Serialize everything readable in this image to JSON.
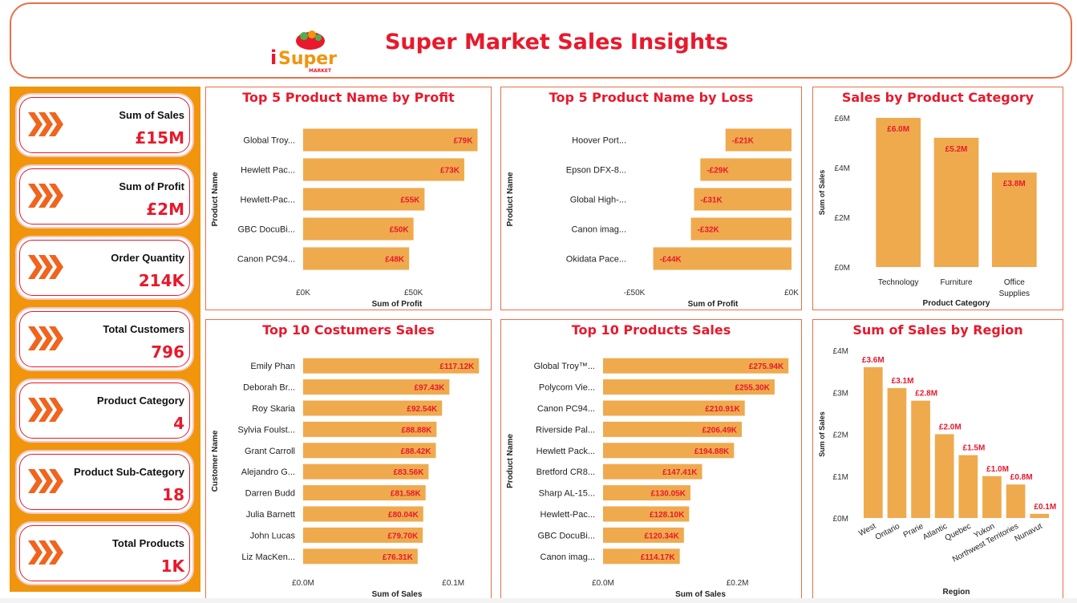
{
  "header": {
    "title": "Super Market Sales Insights",
    "logo_text": "Super",
    "logo_subtext": "MARKET",
    "logo_i": "i"
  },
  "kpis": [
    {
      "label": "Sum of Sales",
      "value": "£15M"
    },
    {
      "label": "Sum of Profit",
      "value": "£2M"
    },
    {
      "label": "Order Quantity",
      "value": "214K"
    },
    {
      "label": "Total Customers",
      "value": "796"
    },
    {
      "label": "Product Category",
      "value": "4"
    },
    {
      "label": "Product Sub-Category",
      "value": "18"
    },
    {
      "label": "Total Products",
      "value": "1K"
    }
  ],
  "colors": {
    "bar": "#efaa4e",
    "accent": "#e8192c",
    "border": "#e8704a",
    "sidebar": "#f0950c"
  },
  "chart_data": [
    {
      "id": "profit",
      "type": "bar",
      "orientation": "horizontal",
      "title": "Top 5 Product Name by Profit",
      "xlabel": "Sum of Profit",
      "ylabel": "Product Name",
      "categories": [
        "Global Troy...",
        "Hewlett Pac...",
        "Hewlett-Pac...",
        "GBC DocuBi...",
        "Canon PC94..."
      ],
      "values": [
        79,
        73,
        55,
        50,
        48
      ],
      "labels": [
        "£79K",
        "£73K",
        "£55K",
        "£50K",
        "£48K"
      ],
      "xlim": [
        0,
        85
      ],
      "ticks": [
        0,
        50
      ],
      "tick_labels": [
        "£0K",
        "£50K"
      ]
    },
    {
      "id": "loss",
      "type": "bar",
      "orientation": "horizontal",
      "title": "Top 5 Product Name by Loss",
      "xlabel": "Sum of Profit",
      "ylabel": "Product Name",
      "categories": [
        "Hoover Port...",
        "Epson DFX-8...",
        "Global High-...",
        "Canon imag...",
        "Okidata Pace..."
      ],
      "values": [
        -21,
        -29,
        -31,
        -32,
        -44
      ],
      "labels": [
        "-£21K",
        "-£29K",
        "-£31K",
        "-£32K",
        "-£44K"
      ],
      "xlim": [
        -50,
        0
      ],
      "ticks": [
        -50,
        0
      ],
      "tick_labels": [
        "-£50K",
        "£0K"
      ]
    },
    {
      "id": "category",
      "type": "bar",
      "orientation": "vertical",
      "title": "Sales by Product Category",
      "xlabel": "Product Category",
      "ylabel": "Sum of Sales",
      "categories": [
        [
          "Technology"
        ],
        [
          "Furniture"
        ],
        [
          "Office",
          "Supplies"
        ]
      ],
      "values": [
        6.0,
        5.2,
        3.8
      ],
      "labels": [
        "£6.0M",
        "£5.2M",
        "£3.8M"
      ],
      "ylim": [
        0,
        6
      ],
      "ticks": [
        0,
        2,
        4,
        6
      ],
      "tick_labels": [
        "£0M",
        "£2M",
        "£4M",
        "£6M"
      ]
    },
    {
      "id": "customers",
      "type": "bar",
      "orientation": "horizontal",
      "title": "Top 10 Costumers Sales",
      "xlabel": "Sum of Sales",
      "ylabel": "Customer Name",
      "categories": [
        "Emily Phan",
        "Deborah Br...",
        "Roy Skaria",
        "Sylvia Foulst...",
        "Grant Carroll",
        "Alejandro G...",
        "Darren Budd",
        "Julia Barnett",
        "John Lucas",
        "Liz MacKen..."
      ],
      "values": [
        117.12,
        97.43,
        92.54,
        88.88,
        88.42,
        83.56,
        81.58,
        80.04,
        79.7,
        76.31
      ],
      "labels": [
        "£117.12K",
        "£97.43K",
        "£92.54K",
        "£88.88K",
        "£88.42K",
        "£83.56K",
        "£81.58K",
        "£80.04K",
        "£79.70K",
        "£76.31K"
      ],
      "xlim": [
        0,
        125
      ],
      "ticks": [
        0,
        100
      ],
      "tick_labels": [
        "£0.0M",
        "£0.1M"
      ]
    },
    {
      "id": "products",
      "type": "bar",
      "orientation": "horizontal",
      "title": "Top 10 Products Sales",
      "xlabel": "Sum of Sales",
      "ylabel": "Product Name",
      "categories": [
        "Global Troy™...",
        "Polycom Vie...",
        "Canon PC94...",
        "Riverside Pal...",
        "Hewlett Pack...",
        "Bretford CR8...",
        "Sharp AL-15...",
        "Hewlett-Pac...",
        "GBC DocuBi...",
        "Canon imag..."
      ],
      "values": [
        275.94,
        255.3,
        210.91,
        206.49,
        194.88,
        147.41,
        130.05,
        128.1,
        120.34,
        114.17
      ],
      "labels": [
        "£275.94K",
        "£255.30K",
        "£210.91K",
        "£206.49K",
        "£194.88K",
        "£147.41K",
        "£130.05K",
        "£128.10K",
        "£120.34K",
        "£114.17K"
      ],
      "xlim": [
        0,
        290
      ],
      "ticks": [
        0,
        200
      ],
      "tick_labels": [
        "£0.0M",
        "£0.2M"
      ]
    },
    {
      "id": "region",
      "type": "bar",
      "orientation": "vertical",
      "title": "Sum of Sales by Region",
      "xlabel": "Region",
      "ylabel": "Sum of Sales",
      "categories": [
        "West",
        "Ontario",
        "Prarie",
        "Atlantic",
        "Quebec",
        "Yukon",
        "Northwest Territories",
        "Nunavut"
      ],
      "values": [
        3.6,
        3.1,
        2.8,
        2.0,
        1.5,
        1.0,
        0.8,
        0.1
      ],
      "labels": [
        "£3.6M",
        "£3.1M",
        "£2.8M",
        "£2.0M",
        "£1.5M",
        "£1.0M",
        "£0.8M",
        "£0.1M"
      ],
      "ylim": [
        0,
        4
      ],
      "ticks": [
        0,
        1,
        2,
        3,
        4
      ],
      "tick_labels": [
        "£0M",
        "£1M",
        "£2M",
        "£3M",
        "£4M"
      ]
    }
  ]
}
